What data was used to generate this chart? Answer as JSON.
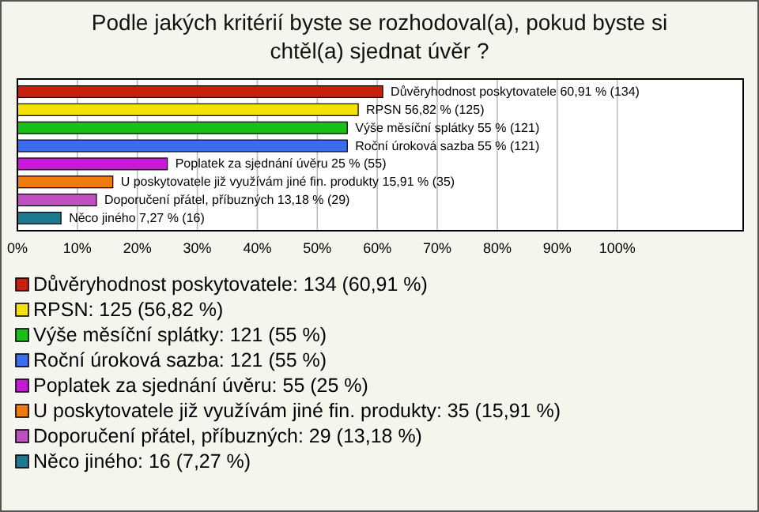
{
  "chart_data": {
    "type": "bar",
    "orientation": "horizontal",
    "title": "Podle jakých kritérií byste se rozhodoval(a), pokud byste si chtěl(a) sjednat úvěr ?",
    "categories": [
      "Důvěryhodnost poskytovatele",
      "RPSN",
      "Výše měsíční splátky",
      "Roční úroková sazba",
      "Poplatek za sjednání úvěru",
      "U poskytovatele již využívám jiné fin. produkty",
      "Doporučení přátel, příbuzných",
      "Něco jiného"
    ],
    "values": [
      60.91,
      56.82,
      55,
      55,
      25,
      15.91,
      13.18,
      7.27
    ],
    "value_labels": [
      "60,91 % (134)",
      "56,82 % (125)",
      "55 % (121)",
      "55 % (121)",
      "25 % (55)",
      "15,91 % (35)",
      "13,18 % (29)",
      "7,27 % (16)"
    ],
    "colors": [
      "#c8200e",
      "#f5e10a",
      "#18c018",
      "#3a6ef0",
      "#c818d8",
      "#f07a0a",
      "#c050c0",
      "#1e7890"
    ],
    "xlim": [
      0,
      121
    ],
    "xticks": [
      {
        "value": 0,
        "label": "0%"
      },
      {
        "value": 10,
        "label": "10%"
      },
      {
        "value": 20,
        "label": "20%"
      },
      {
        "value": 30,
        "label": "30%"
      },
      {
        "value": 40,
        "label": "40%"
      },
      {
        "value": 50,
        "label": "50%"
      },
      {
        "value": 60,
        "label": "60%"
      },
      {
        "value": 70,
        "label": "70%"
      },
      {
        "value": 80,
        "label": "80%"
      },
      {
        "value": 90,
        "label": "90%"
      },
      {
        "value": 100,
        "label": "100%"
      }
    ],
    "grid": "x",
    "annotations": [
      "Důvěryhodnost poskytovatele: 134 (60,91 %)",
      "RPSN: 125 (56,82 %)",
      "Výše měsíční splátky: 121 (55 %)",
      "Roční úroková sazba: 121 (55 %)",
      "Poplatek za sjednání úvěru: 55 (25 %)",
      "U poskytovatele již využívám jiné fin. produkty: 35 (15,91 %)",
      "Doporučení přátel, příbuzných: 29 (13,18 %)",
      "Něco jiného: 16 (7,27 %)"
    ]
  }
}
